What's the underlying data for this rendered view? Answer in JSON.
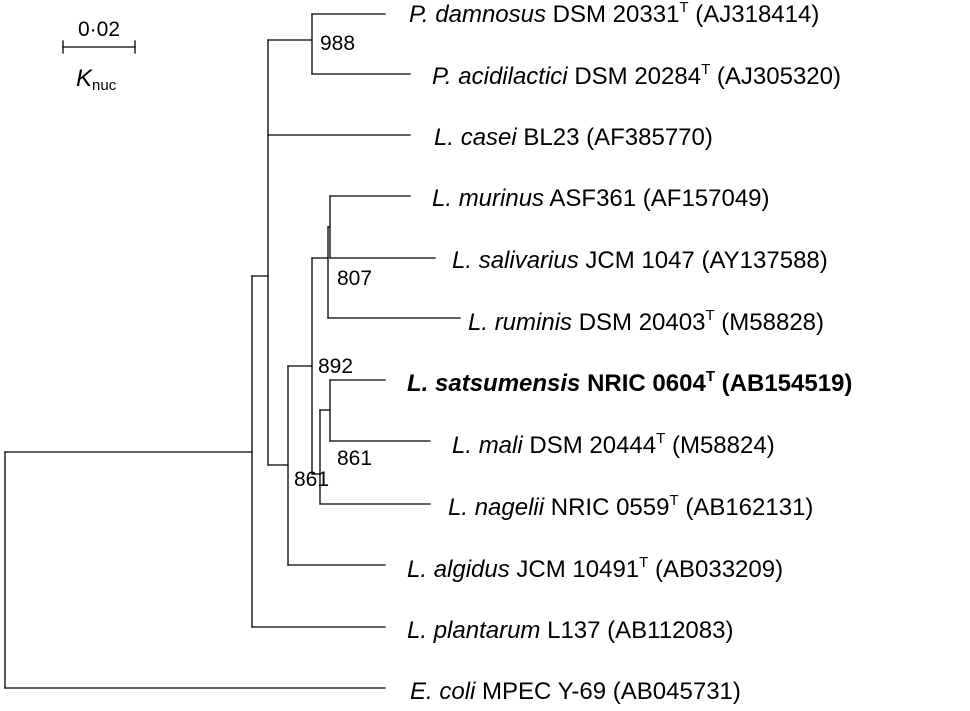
{
  "scale": {
    "value": "0·02",
    "label": "K",
    "label_sub": "nuc"
  },
  "taxa": [
    {
      "id": "p-damnosus",
      "genus": "P.",
      "species": "damnosus",
      "strain": "DSM 20331",
      "type_strain": "T",
      "accession": "(AJ318414)",
      "bold": false
    },
    {
      "id": "p-acidilactici",
      "genus": "P.",
      "species": "acidilactici",
      "strain": "DSM 20284",
      "type_strain": "T",
      "accession": "(AJ305320)",
      "bold": false
    },
    {
      "id": "l-casei",
      "genus": "L.",
      "species": "casei",
      "strain": "BL23",
      "type_strain": "",
      "accession": "(AF385770)",
      "bold": false
    },
    {
      "id": "l-murinus",
      "genus": "L.",
      "species": "murinus",
      "strain": "ASF361",
      "type_strain": "",
      "accession": "(AF157049)",
      "bold": false
    },
    {
      "id": "l-salivarius",
      "genus": "L.",
      "species": "salivarius",
      "strain": "JCM 1047",
      "type_strain": "",
      "accession": "(AY137588)",
      "bold": false
    },
    {
      "id": "l-ruminis",
      "genus": "L.",
      "species": "ruminis",
      "strain": "DSM 20403",
      "type_strain": "T",
      "accession": "(M58828)",
      "bold": false
    },
    {
      "id": "l-satsumensis",
      "genus": "L.",
      "species": "satsumensis",
      "strain": "NRIC 0604",
      "type_strain": "T",
      "accession": "(AB154519)",
      "bold": true
    },
    {
      "id": "l-mali",
      "genus": "L.",
      "species": "mali",
      "strain": "DSM 20444",
      "type_strain": "T",
      "accession": "(M58824)",
      "bold": false
    },
    {
      "id": "l-nagelii",
      "genus": "L.",
      "species": "nagelii",
      "strain": "NRIC 0559",
      "type_strain": "T",
      "accession": "(AB162131)",
      "bold": false
    },
    {
      "id": "l-algidus",
      "genus": "L.",
      "species": "algidus",
      "strain": "JCM 10491",
      "type_strain": "T",
      "accession": "(AB033209)",
      "bold": false
    },
    {
      "id": "l-plantarum",
      "genus": "L.",
      "species": "plantarum",
      "strain": "L137",
      "type_strain": "",
      "accession": "(AB112083)",
      "bold": false
    },
    {
      "id": "e-coli",
      "genus": "E.",
      "species": "coli",
      "strain": "MPEC Y-69",
      "type_strain": "",
      "accession": "(AB045731)",
      "bold": false
    }
  ],
  "bootstrap": [
    {
      "id": "pediococcus-node",
      "value": "988"
    },
    {
      "id": "salivarius-node",
      "value": "807"
    },
    {
      "id": "satsumensis-group-node",
      "value": "892"
    },
    {
      "id": "satsumensis-mali-node",
      "value": "861"
    },
    {
      "id": "nagelii-node",
      "value": "861"
    }
  ]
}
